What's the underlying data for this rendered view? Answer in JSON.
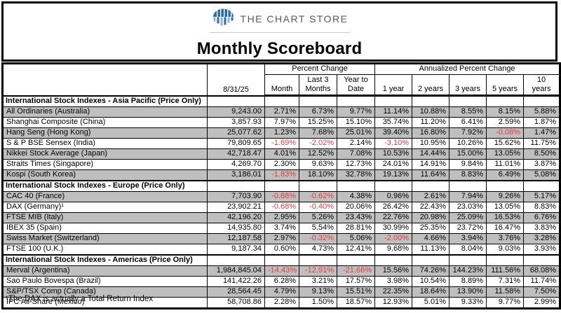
{
  "header": {
    "logo_text": "THE CHART STORE",
    "title": "Monthly Scoreboard"
  },
  "colors": {
    "negative_value_red": "#e8393f",
    "row_band_gray": "#bfbfbf",
    "logo_dome_blue": "#2b6da5",
    "logo_bar_light_blue": "#8fb3d4",
    "logo_text_gray": "#58595b"
  },
  "table": {
    "date_header": "8/31/25",
    "group_headers": {
      "percent_change": "Percent Change",
      "annualized": "Annualized Percent Change"
    },
    "column_headers": [
      "Month",
      "Last 3 Months",
      "Year to Date",
      "1 year",
      "2 years",
      "3 years",
      "5 years",
      "10 years"
    ],
    "sections": [
      {
        "title": "International Stock Indexes - Asia Pacific (Price Only)",
        "rows": [
          {
            "label": "All Ordinaries (Australia)",
            "value": "9,243.00",
            "cells": [
              "2.71%",
              "6.73%",
              "9.77%",
              "11.14%",
              "10.88%",
              "8.55%",
              "8.15%",
              "5.88%"
            ]
          },
          {
            "label": "Shanghai Composite (China)",
            "value": "3,857.93",
            "cells": [
              "7.97%",
              "15.25%",
              "15.10%",
              "35.74%",
              "11.20%",
              "6.41%",
              "2.59%",
              "1.87%"
            ]
          },
          {
            "label": "Hang Seng (Hong Kong)",
            "value": "25,077.62",
            "cells": [
              "1.23%",
              "7.68%",
              "25.01%",
              "39.40%",
              "16.80%",
              "7.92%",
              "-0.08%",
              "1.47%"
            ]
          },
          {
            "label": "S & P BSE Sensex (India)",
            "value": "79,809.65",
            "cells": [
              "-1.69%",
              "-2.02%",
              "2.14%",
              "-3.10%",
              "10.95%",
              "10.26%",
              "15.62%",
              "11.75%"
            ]
          },
          {
            "label": "Nikkei Stock Average (Japan)",
            "value": "42,718.47",
            "cells": [
              "4.01%",
              "12.52%",
              "7.08%",
              "10.53%",
              "14.44%",
              "15.00%",
              "13.05%",
              "8.50%"
            ]
          },
          {
            "label": "Straits Times (Singapore)",
            "value": "4,269.70",
            "cells": [
              "2.30%",
              "9.63%",
              "12.73%",
              "24.01%",
              "14.91%",
              "9.84%",
              "11.01%",
              "3.87%"
            ]
          },
          {
            "label": "Kospi (South Korea)",
            "value": "3,186.01",
            "cells": [
              "-1.83%",
              "18.10%",
              "32.78%",
              "19.13%",
              "11.64%",
              "8.83%",
              "6.49%",
              "5.08%"
            ]
          }
        ]
      },
      {
        "title": "International Stock Indexes - Europe (Price Only)",
        "rows": [
          {
            "label": "CAC 40 (France)",
            "value": "7,703.90",
            "cells": [
              "-0.88%",
              "-0.62%",
              "4.38%",
              "0.96%",
              "2.61%",
              "7.94%",
              "9.26%",
              "5.17%"
            ]
          },
          {
            "label": "DAX (Germany)¹",
            "value": "23,902.21",
            "cells": [
              "-0.68%",
              "-0.40%",
              "20.06%",
              "26.42%",
              "22.43%",
              "23.03%",
              "13.05%",
              "8.83%"
            ]
          },
          {
            "label": "FTSE MIB (Italy)",
            "value": "42,196.20",
            "cells": [
              "2.95%",
              "5.26%",
              "23.43%",
              "22.76%",
              "20.98%",
              "25.09%",
              "16.53%",
              "6.76%"
            ]
          },
          {
            "label": "IBEX 35 (Spain)",
            "value": "14,935.80",
            "cells": [
              "3.74%",
              "5.54%",
              "28.81%",
              "30.99%",
              "25.35%",
              "23.72%",
              "16.47%",
              "3.83%"
            ]
          },
          {
            "label": "Swiss Market (Switzerland)",
            "value": "12,187.58",
            "cells": [
              "2.97%",
              "-0.32%",
              "5.06%",
              "-2.00%",
              "4.66%",
              "3.94%",
              "3.76%",
              "3.28%"
            ]
          },
          {
            "label": "FTSE 100 (U.K.)",
            "value": "9,187.34",
            "cells": [
              "0.60%",
              "4.73%",
              "12.41%",
              "9.68%",
              "11.13%",
              "8.04%",
              "9.03%",
              "3.93%"
            ]
          }
        ]
      },
      {
        "title": "International Stock Indexes - Americas (Price Only)",
        "rows": [
          {
            "label": "Merval (Argentina)",
            "value": "1,984,845.04",
            "cells": [
              "-14.43%",
              "-12.91%",
              "-21.66%",
              "15.56%",
              "74.26%",
              "144.23%",
              "111.56%",
              "68.08%"
            ]
          },
          {
            "label": "Sao Paulo Bovespa (Brazil)",
            "value": "141,422.26",
            "cells": [
              "6.28%",
              "3.21%",
              "17.57%",
              "3.98%",
              "10.54%",
              "8.89%",
              "7.31%",
              "11.74%"
            ]
          },
          {
            "label": "S&P/TSX Comp (Canada)",
            "value": "28,564.45",
            "cells": [
              "4.79%",
              "9.13%",
              "15.51%",
              "22.35%",
              "18.64%",
              "13.90%",
              "11.58%",
              "7.50%"
            ]
          },
          {
            "label": "IPC All-Share (Mexico)",
            "value": "58,708.86",
            "cells": [
              "2.28%",
              "1.50%",
              "18.57%",
              "12.93%",
              "5.01%",
              "9.33%",
              "9.77%",
              "2.99%"
            ]
          }
        ]
      }
    ]
  },
  "footnote": "¹The DAX is actually a Total Return Index"
}
